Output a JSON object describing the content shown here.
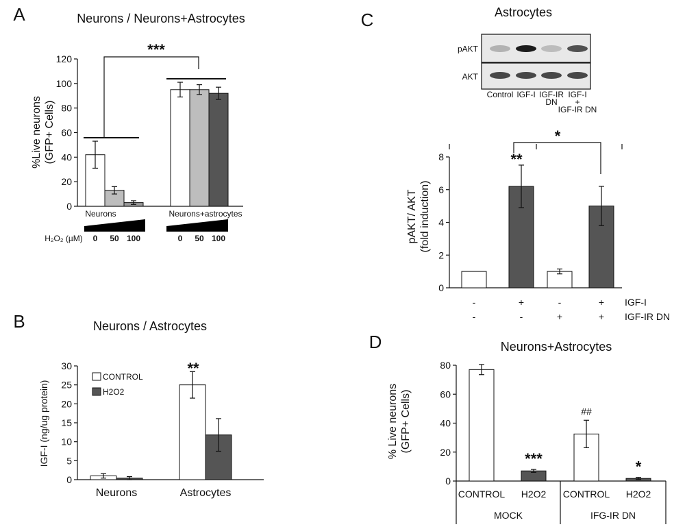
{
  "colors": {
    "control_fill": "#ffffff",
    "light_gray": "#bdbdbd",
    "mid_gray": "#9a9a9a",
    "dark_gray": "#555555"
  },
  "chart_data": [
    {
      "panel": "A",
      "type": "bar",
      "title": "Neurons  / Neurons+Astrocytes",
      "ylabel_line1": "%Live neurons",
      "ylabel_line2": "(GFP+ Cells)",
      "ylim": [
        0,
        120
      ],
      "yticks": [
        "0",
        "20",
        "40",
        "60",
        "80",
        "100",
        "120"
      ],
      "groups": [
        {
          "name": "Neurons",
          "doses": [
            "0",
            "50",
            "100"
          ],
          "values": [
            42,
            13,
            3
          ],
          "errors": [
            11,
            3,
            1.5
          ]
        },
        {
          "name": "Neurons+astrocytes",
          "doses": [
            "0",
            "50",
            "100"
          ],
          "values": [
            95,
            95,
            92
          ],
          "errors": [
            6,
            4,
            5
          ]
        }
      ],
      "dose_label": "H₂O₂ (µM)",
      "significance": "***"
    },
    {
      "panel": "B",
      "type": "bar",
      "title": "Neurons  / Astrocytes",
      "ylabel": "IGF-I (ng/ug  protein)",
      "ylim": [
        0,
        30
      ],
      "yticks": [
        "0",
        "5",
        "10",
        "15",
        "20",
        "25",
        "30"
      ],
      "categories": [
        "Neurons",
        "Astrocytes"
      ],
      "series": [
        {
          "name": "CONTROL",
          "values": [
            1,
            25
          ],
          "errors": [
            0.6,
            3.5
          ]
        },
        {
          "name": "H2O2",
          "values": [
            0.4,
            11.8
          ],
          "errors": [
            0.4,
            4.3
          ]
        }
      ],
      "legend": "top-left",
      "significance": "**"
    },
    {
      "panel": "C",
      "type": "bar",
      "title": "Astrocytes",
      "blot": {
        "rows": [
          "pAKT",
          "AKT"
        ],
        "lanes": [
          "Control",
          "IGF-I",
          "IGF-IR DN",
          "IGF-I + IGF-IR DN"
        ],
        "lane_lines": [
          [
            "Control"
          ],
          [
            "IGF-I"
          ],
          [
            "IGF-IR",
            "DN"
          ],
          [
            "IGF-I",
            "+",
            "IGF-IR DN"
          ]
        ]
      },
      "ylabel_line1": "pAKT/ AKT",
      "ylabel_line2": "(fold induction)",
      "ylim": [
        0,
        8
      ],
      "yticks": [
        "0",
        "2",
        "4",
        "6",
        "8"
      ],
      "values": [
        1,
        6.2,
        1,
        5
      ],
      "errors": [
        0,
        1.3,
        0.15,
        1.2
      ],
      "conditions": {
        "row1_label": "IGF-I",
        "row1": [
          "-",
          "+",
          "-",
          "+"
        ],
        "row2_label": "IGF-IR DN",
        "row2": [
          "-",
          "-",
          "+",
          "+"
        ]
      },
      "sig_bar2": "**",
      "sig_bracket": "*"
    },
    {
      "panel": "D",
      "type": "bar",
      "title": "Neurons+Astrocytes",
      "ylabel_line1": "% Live neurons",
      "ylabel_line2": "(GFP+ Cells)",
      "ylim": [
        0,
        80
      ],
      "yticks": [
        "0",
        "20",
        "40",
        "60",
        "80"
      ],
      "categories": [
        "CONTROL",
        "H2O2",
        "CONTROL",
        "H2O2"
      ],
      "groups": [
        "MOCK",
        "IFG-IR DN"
      ],
      "values": [
        77,
        7,
        32.5,
        1.8
      ],
      "errors": [
        3.5,
        1,
        9.5,
        0.7
      ],
      "annotations": [
        "",
        "***",
        "##",
        "*"
      ]
    }
  ]
}
